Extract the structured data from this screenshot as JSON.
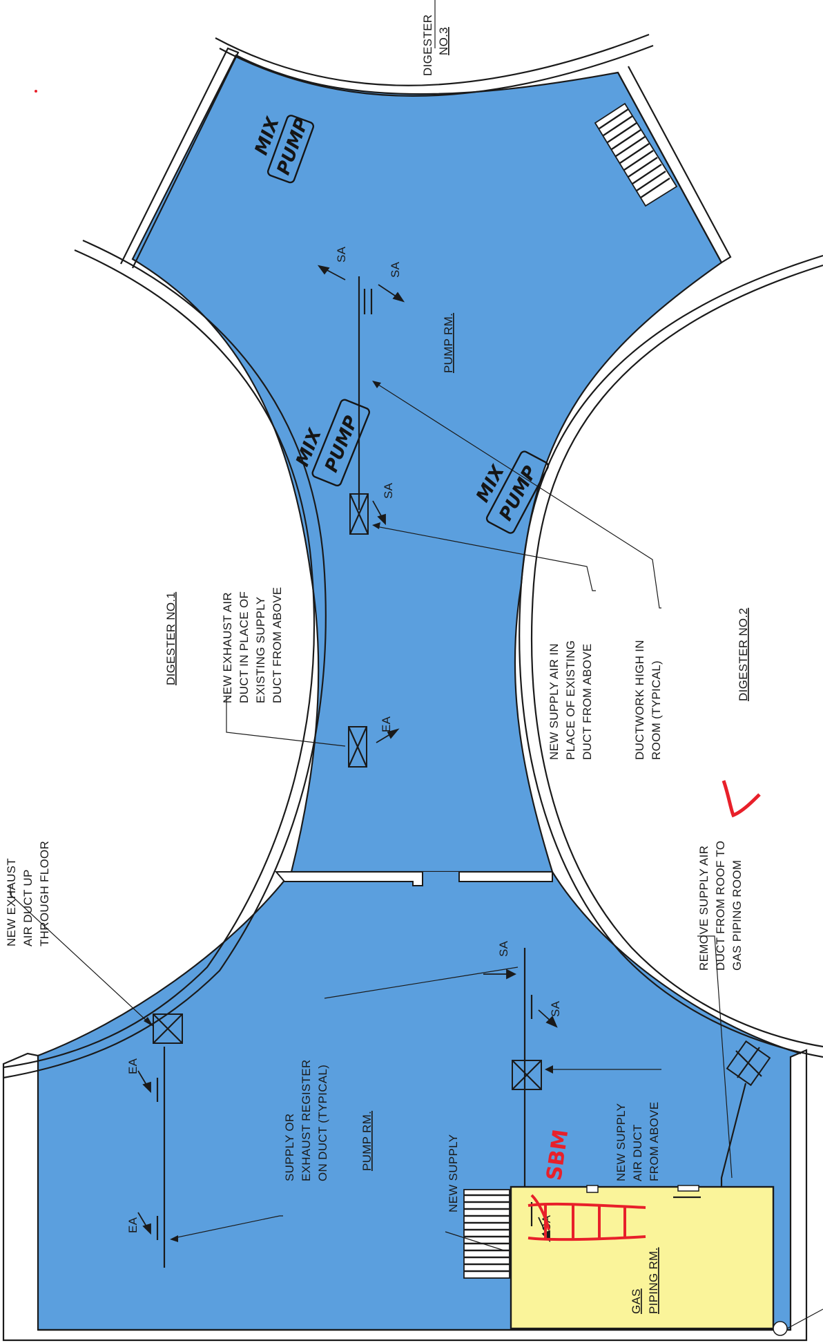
{
  "colors": {
    "pump_room_fill": "#5b9fde",
    "gas_room_fill": "#faf49a",
    "markup_red": "#e8202a",
    "paper": "#ffffff",
    "ink": "#1a1a1a"
  },
  "rooms": {
    "digester_1": "DIGESTER NO.1",
    "digester_2": "DIGESTER NO.2",
    "digester_3_line1": "DIGESTER",
    "digester_3_line2": "NO.3",
    "pump_rm_upper": "PUMP RM.",
    "pump_rm_lower": "PUMP RM.",
    "gas_piping_line1": "GAS",
    "gas_piping_line2": "PIPING RM."
  },
  "notes": {
    "exhaust_up_floor": [
      "NEW EXHAUST",
      "AIR DUCT UP",
      "THROUGH FLOOR"
    ],
    "register_typical": [
      "SUPPLY OR",
      "EXHAUST REGISTER",
      "ON DUCT (TYPICAL)"
    ],
    "new_supply": "NEW SUPPLY",
    "supply_from_above": [
      "NEW SUPPLY",
      "AIR DUCT",
      "FROM ABOVE"
    ],
    "remove_supply": [
      "REMOVE SUPPLY AIR",
      "DUCT FROM ROOF TO",
      "GAS PIPING ROOM"
    ],
    "exhaust_in_place": [
      "NEW EXHAUST AIR",
      "DUCT IN PLACE OF",
      "EXISTING SUPPLY",
      "DUCT FROM ABOVE"
    ],
    "supply_in_place": [
      "NEW SUPPLY AIR IN",
      "PLACE OF EXISTING",
      "DUCT FROM ABOVE"
    ],
    "ductwork_high": [
      "DUCTWORK HIGH IN",
      "ROOM (TYPICAL)"
    ]
  },
  "tags": {
    "sa": "SA",
    "ea": "EA"
  },
  "handwritten": {
    "mix_pump_line1": "MIX",
    "mix_pump_line2": "PUMP",
    "initials": "SBM"
  }
}
